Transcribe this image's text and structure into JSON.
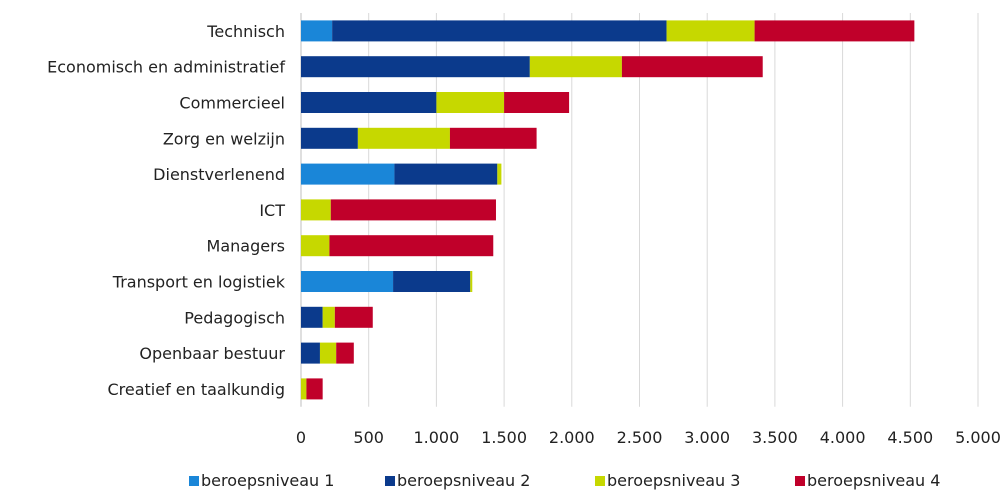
{
  "chart_data": {
    "type": "bar",
    "orientation": "horizontal",
    "stacked": true,
    "categories": [
      "Technisch",
      "Economisch en administratief",
      "Commercieel",
      "Zorg en welzijn",
      "Dienstverlenend",
      "ICT",
      "Managers",
      "Transport en logistiek",
      "Pedagogisch",
      "Openbaar bestuur",
      "Creatief en taalkundig"
    ],
    "series": [
      {
        "name": "beroepsniveau 1",
        "color": "#1a86d8",
        "values": [
          230,
          0,
          0,
          0,
          690,
          0,
          0,
          680,
          0,
          0,
          0
        ]
      },
      {
        "name": "beroepsniveau 2",
        "color": "#0b3a8c",
        "values": [
          2470,
          1690,
          1000,
          420,
          760,
          0,
          0,
          570,
          160,
          140,
          0
        ]
      },
      {
        "name": "beroepsniveau 3",
        "color": "#c6d800",
        "values": [
          650,
          680,
          500,
          680,
          30,
          220,
          210,
          15,
          90,
          120,
          40
        ]
      },
      {
        "name": "beroepsniveau 4",
        "color": "#c0002a",
        "values": [
          1180,
          1040,
          480,
          640,
          0,
          1220,
          1210,
          0,
          280,
          130,
          120
        ]
      }
    ],
    "xlim": [
      0,
      5000
    ],
    "xticks": [
      0,
      500,
      1000,
      1500,
      2000,
      2500,
      3000,
      3500,
      4000,
      4500,
      5000
    ],
    "xtick_labels": [
      "0",
      "500",
      "1.000",
      "1.500",
      "2.000",
      "2.500",
      "3.000",
      "3.500",
      "4.000",
      "4.500",
      "5.000"
    ],
    "grid": true,
    "legend_position": "bottom",
    "title": "",
    "xlabel": "",
    "ylabel": ""
  }
}
